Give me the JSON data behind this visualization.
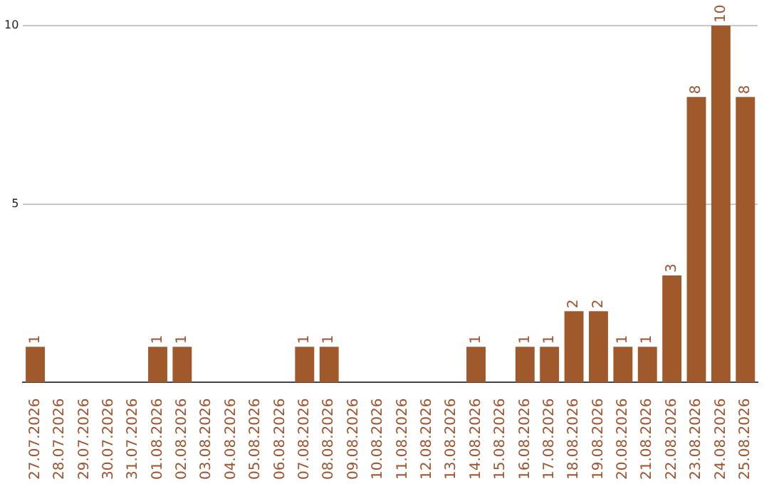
{
  "chart_data": {
    "type": "bar",
    "categories": [
      "27.07.2026",
      "28.07.2026",
      "29.07.2026",
      "30.07.2026",
      "31.07.2026",
      "01.08.2026",
      "02.08.2026",
      "03.08.2026",
      "04.08.2026",
      "05.08.2026",
      "06.08.2026",
      "07.08.2026",
      "08.08.2026",
      "09.08.2026",
      "10.08.2026",
      "11.08.2026",
      "12.08.2026",
      "13.08.2026",
      "14.08.2026",
      "15.08.2026",
      "16.08.2026",
      "17.08.2026",
      "18.08.2026",
      "19.08.2026",
      "20.08.2026",
      "21.08.2026",
      "22.08.2026",
      "23.08.2026",
      "24.08.2026",
      "25.08.2026"
    ],
    "values": [
      1,
      0,
      0,
      0,
      0,
      1,
      1,
      0,
      0,
      0,
      0,
      1,
      1,
      0,
      0,
      0,
      0,
      0,
      1,
      0,
      1,
      1,
      2,
      2,
      1,
      1,
      3,
      8,
      10,
      8
    ],
    "value_labels": [
      "1",
      null,
      null,
      null,
      null,
      "1",
      "1",
      null,
      null,
      null,
      null,
      "1",
      "1",
      null,
      null,
      null,
      null,
      null,
      "1",
      null,
      "1",
      "1",
      "2",
      "2",
      "1",
      "1",
      "3",
      "8",
      "10",
      "8"
    ],
    "color": "#a0592a",
    "ylim": [
      0,
      10
    ],
    "yticks": [
      5,
      10
    ],
    "grid": "y",
    "legend": false
  }
}
